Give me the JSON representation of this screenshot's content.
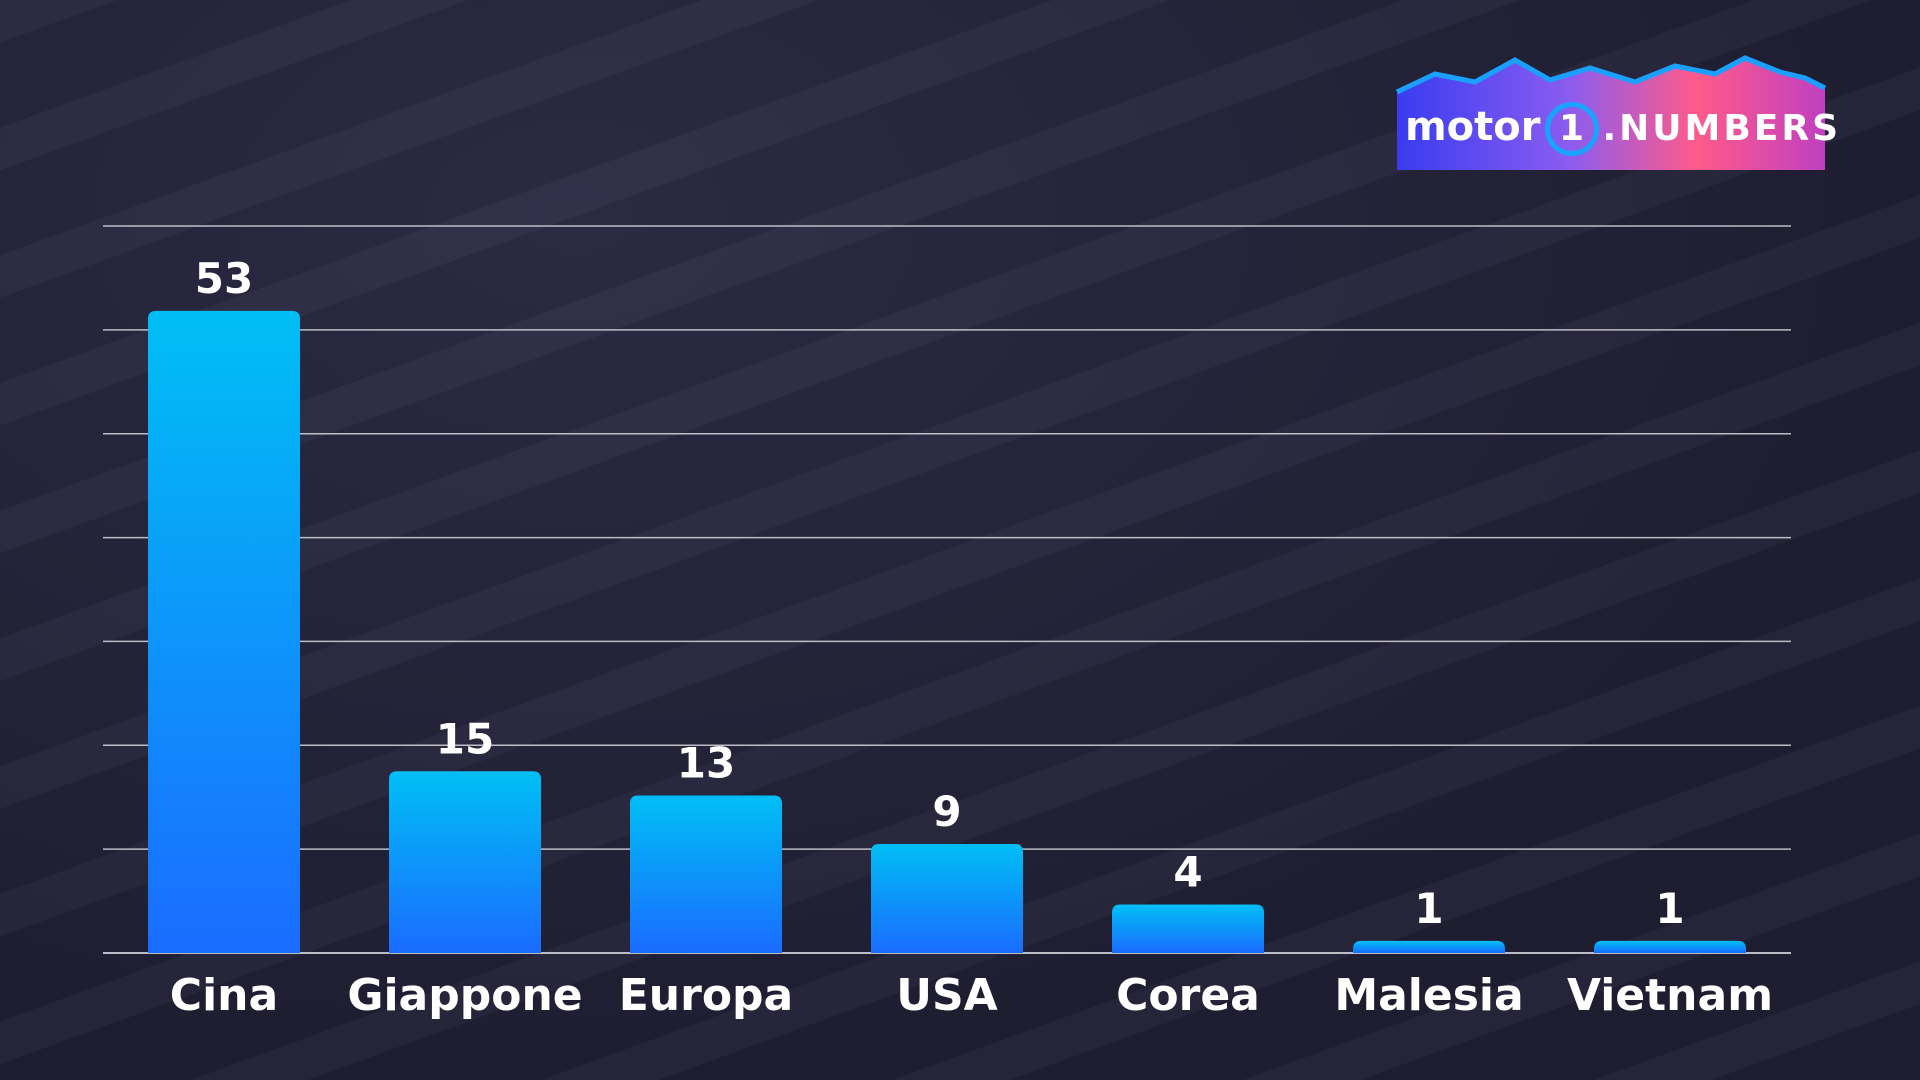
{
  "logo": {
    "brand": "motor",
    "one": "1",
    "suffix": ".NUMBERS"
  },
  "chart_data": {
    "type": "bar",
    "title": "",
    "xlabel": "",
    "ylabel": "",
    "categories": [
      "Cina",
      "Giappone",
      "Europa",
      "USA",
      "Corea",
      "Malesia",
      "Vietnam"
    ],
    "values": [
      53,
      15,
      13,
      9,
      4,
      1,
      1
    ],
    "ylim": [
      0,
      60
    ],
    "grid": true,
    "data_labels": true,
    "colors": {
      "bar_top": "#00bff5",
      "bar_bottom": "#1a6cff",
      "grid": "#d8d8e0",
      "text": "#ffffff"
    }
  }
}
